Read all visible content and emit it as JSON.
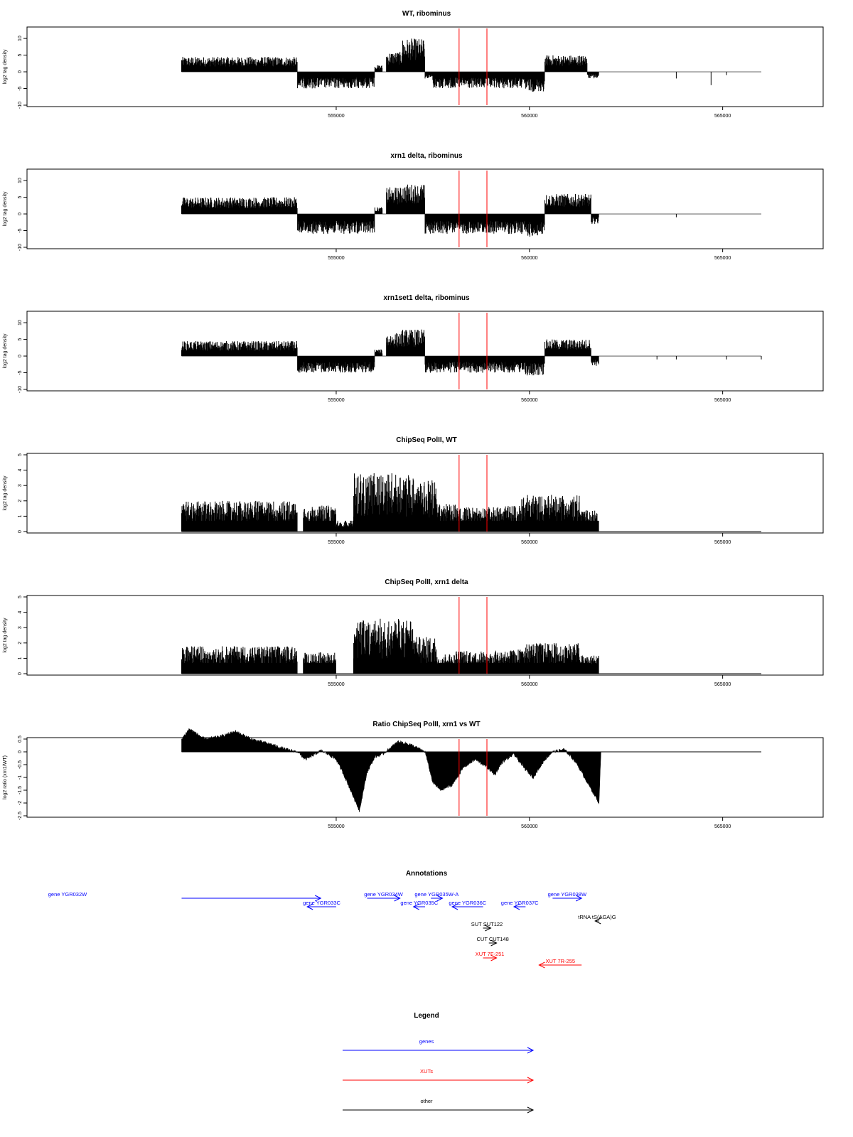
{
  "chart_data": [
    {
      "type": "bar",
      "title": "WT, ribominus",
      "ylabel": "log2 tag density",
      "ylim": [
        -10,
        13
      ],
      "yticks": [
        -10,
        -5,
        0,
        5,
        10
      ],
      "xlim": [
        551000,
        566000
      ],
      "xticks": [
        555000,
        560000,
        565000
      ],
      "grid": false,
      "markers": [
        558180,
        558900
      ],
      "segments": [
        {
          "x": [
            551000,
            554000
          ],
          "y": [
            0,
            4
          ],
          "density": "dense"
        },
        {
          "x": [
            554000,
            556000
          ],
          "y": [
            -5,
            0
          ],
          "density": "dense"
        },
        {
          "x": [
            556700,
            557400
          ],
          "y": [
            0,
            10
          ],
          "density": "dense"
        },
        {
          "x": [
            557400,
            560000
          ],
          "y": [
            -6,
            0
          ],
          "density": "dense"
        },
        {
          "x": [
            560300,
            561300
          ],
          "y": [
            0,
            5
          ],
          "density": "dense"
        }
      ]
    },
    {
      "type": "bar",
      "title": "xrn1 delta, ribominus",
      "ylabel": "log2 tag density",
      "ylim": [
        -10,
        13
      ],
      "yticks": [
        -10,
        -5,
        0,
        5,
        10
      ],
      "xlim": [
        551000,
        566000
      ],
      "xticks": [
        555000,
        560000,
        565000
      ],
      "grid": false,
      "markers": [
        558180,
        558900
      ]
    },
    {
      "type": "bar",
      "title": "xrn1set1 delta, ribominus",
      "ylabel": "log2 tag density",
      "ylim": [
        -10,
        13
      ],
      "yticks": [
        -10,
        -5,
        0,
        5,
        10
      ],
      "xlim": [
        551000,
        566000
      ],
      "xticks": [
        555000,
        560000,
        565000
      ],
      "grid": false,
      "markers": [
        558180,
        558900
      ]
    },
    {
      "type": "bar",
      "title": "ChipSeq PolII, WT",
      "ylabel": "log2 tag density",
      "ylim": [
        0,
        5
      ],
      "yticks": [
        0,
        1,
        2,
        3,
        4,
        5
      ],
      "xlim": [
        551000,
        566000
      ],
      "xticks": [
        555000,
        560000,
        565000
      ],
      "grid": false,
      "markers": [
        558180,
        558900
      ]
    },
    {
      "type": "bar",
      "title": "ChipSeq PolII, xrn1 delta",
      "ylabel": "log2 tag density",
      "ylim": [
        0,
        5
      ],
      "yticks": [
        0,
        1,
        2,
        3,
        4,
        5
      ],
      "xlim": [
        551000,
        566000
      ],
      "xticks": [
        555000,
        560000,
        565000
      ],
      "grid": false,
      "markers": [
        558180,
        558900
      ]
    },
    {
      "type": "area",
      "title": "Ratio ChipSeq PolII, xrn1 vs WT",
      "ylabel": "log2 ratio (xrn1/WT)",
      "ylim": [
        -2.5,
        0.5
      ],
      "yticks": [
        -2.5,
        -2.0,
        -1.5,
        -1.0,
        -0.5,
        0.0,
        0.5
      ],
      "ytick_labels": [
        "-2.5",
        "-2",
        "-1.5",
        "-1",
        "-0.5",
        "0",
        "0.5"
      ],
      "xlim": [
        551000,
        566000
      ],
      "xticks": [
        555000,
        560000,
        565000
      ],
      "grid": false,
      "markers": [
        558180,
        558900
      ]
    }
  ],
  "annotations": {
    "title": "Annotations",
    "colors": {
      "genes": "#0000ff",
      "XUTs": "#ff0000",
      "other": "#000000"
    },
    "features": [
      {
        "label": "gene YGR032W",
        "start": 551000,
        "end": 554600,
        "strand": "+",
        "kind": "genes"
      },
      {
        "label": "gene YGR033C",
        "start": 554250,
        "end": 555000,
        "strand": "-",
        "kind": "genes"
      },
      {
        "label": "gene YGR034W",
        "start": 555800,
        "end": 556650,
        "strand": "+",
        "kind": "genes"
      },
      {
        "label": "gene YGR035W-A",
        "start": 557450,
        "end": 557750,
        "strand": "+",
        "kind": "genes"
      },
      {
        "label": "gene YGR035C",
        "start": 557000,
        "end": 557300,
        "strand": "-",
        "kind": "genes"
      },
      {
        "label": "gene YGR036C",
        "start": 558000,
        "end": 558800,
        "strand": "-",
        "kind": "genes"
      },
      {
        "label": "gene YGR037C",
        "start": 559600,
        "end": 559900,
        "strand": "-",
        "kind": "genes"
      },
      {
        "label": "gene YGR038W",
        "start": 560600,
        "end": 561350,
        "strand": "+",
        "kind": "genes"
      },
      {
        "label": "tRNA tS(AGA)G",
        "start": 561700,
        "end": 561800,
        "strand": "-",
        "kind": "other"
      },
      {
        "label": "SUT SUT122",
        "start": 558800,
        "end": 559000,
        "strand": "+",
        "kind": "other"
      },
      {
        "label": "CUT CUT148",
        "start": 558950,
        "end": 559150,
        "strand": "+",
        "kind": "other"
      },
      {
        "label": "XUT 7F-251",
        "start": 558800,
        "end": 559150,
        "strand": "+",
        "kind": "XUTs"
      },
      {
        "label": "XUT 7R-255",
        "start": 560250,
        "end": 561350,
        "strand": "-",
        "kind": "XUTs"
      }
    ]
  },
  "legend": {
    "title": "Legend",
    "items": [
      {
        "label": "genes",
        "color": "#0000ff"
      },
      {
        "label": "XUTs",
        "color": "#ff0000"
      },
      {
        "label": "other",
        "color": "#000000"
      }
    ]
  }
}
